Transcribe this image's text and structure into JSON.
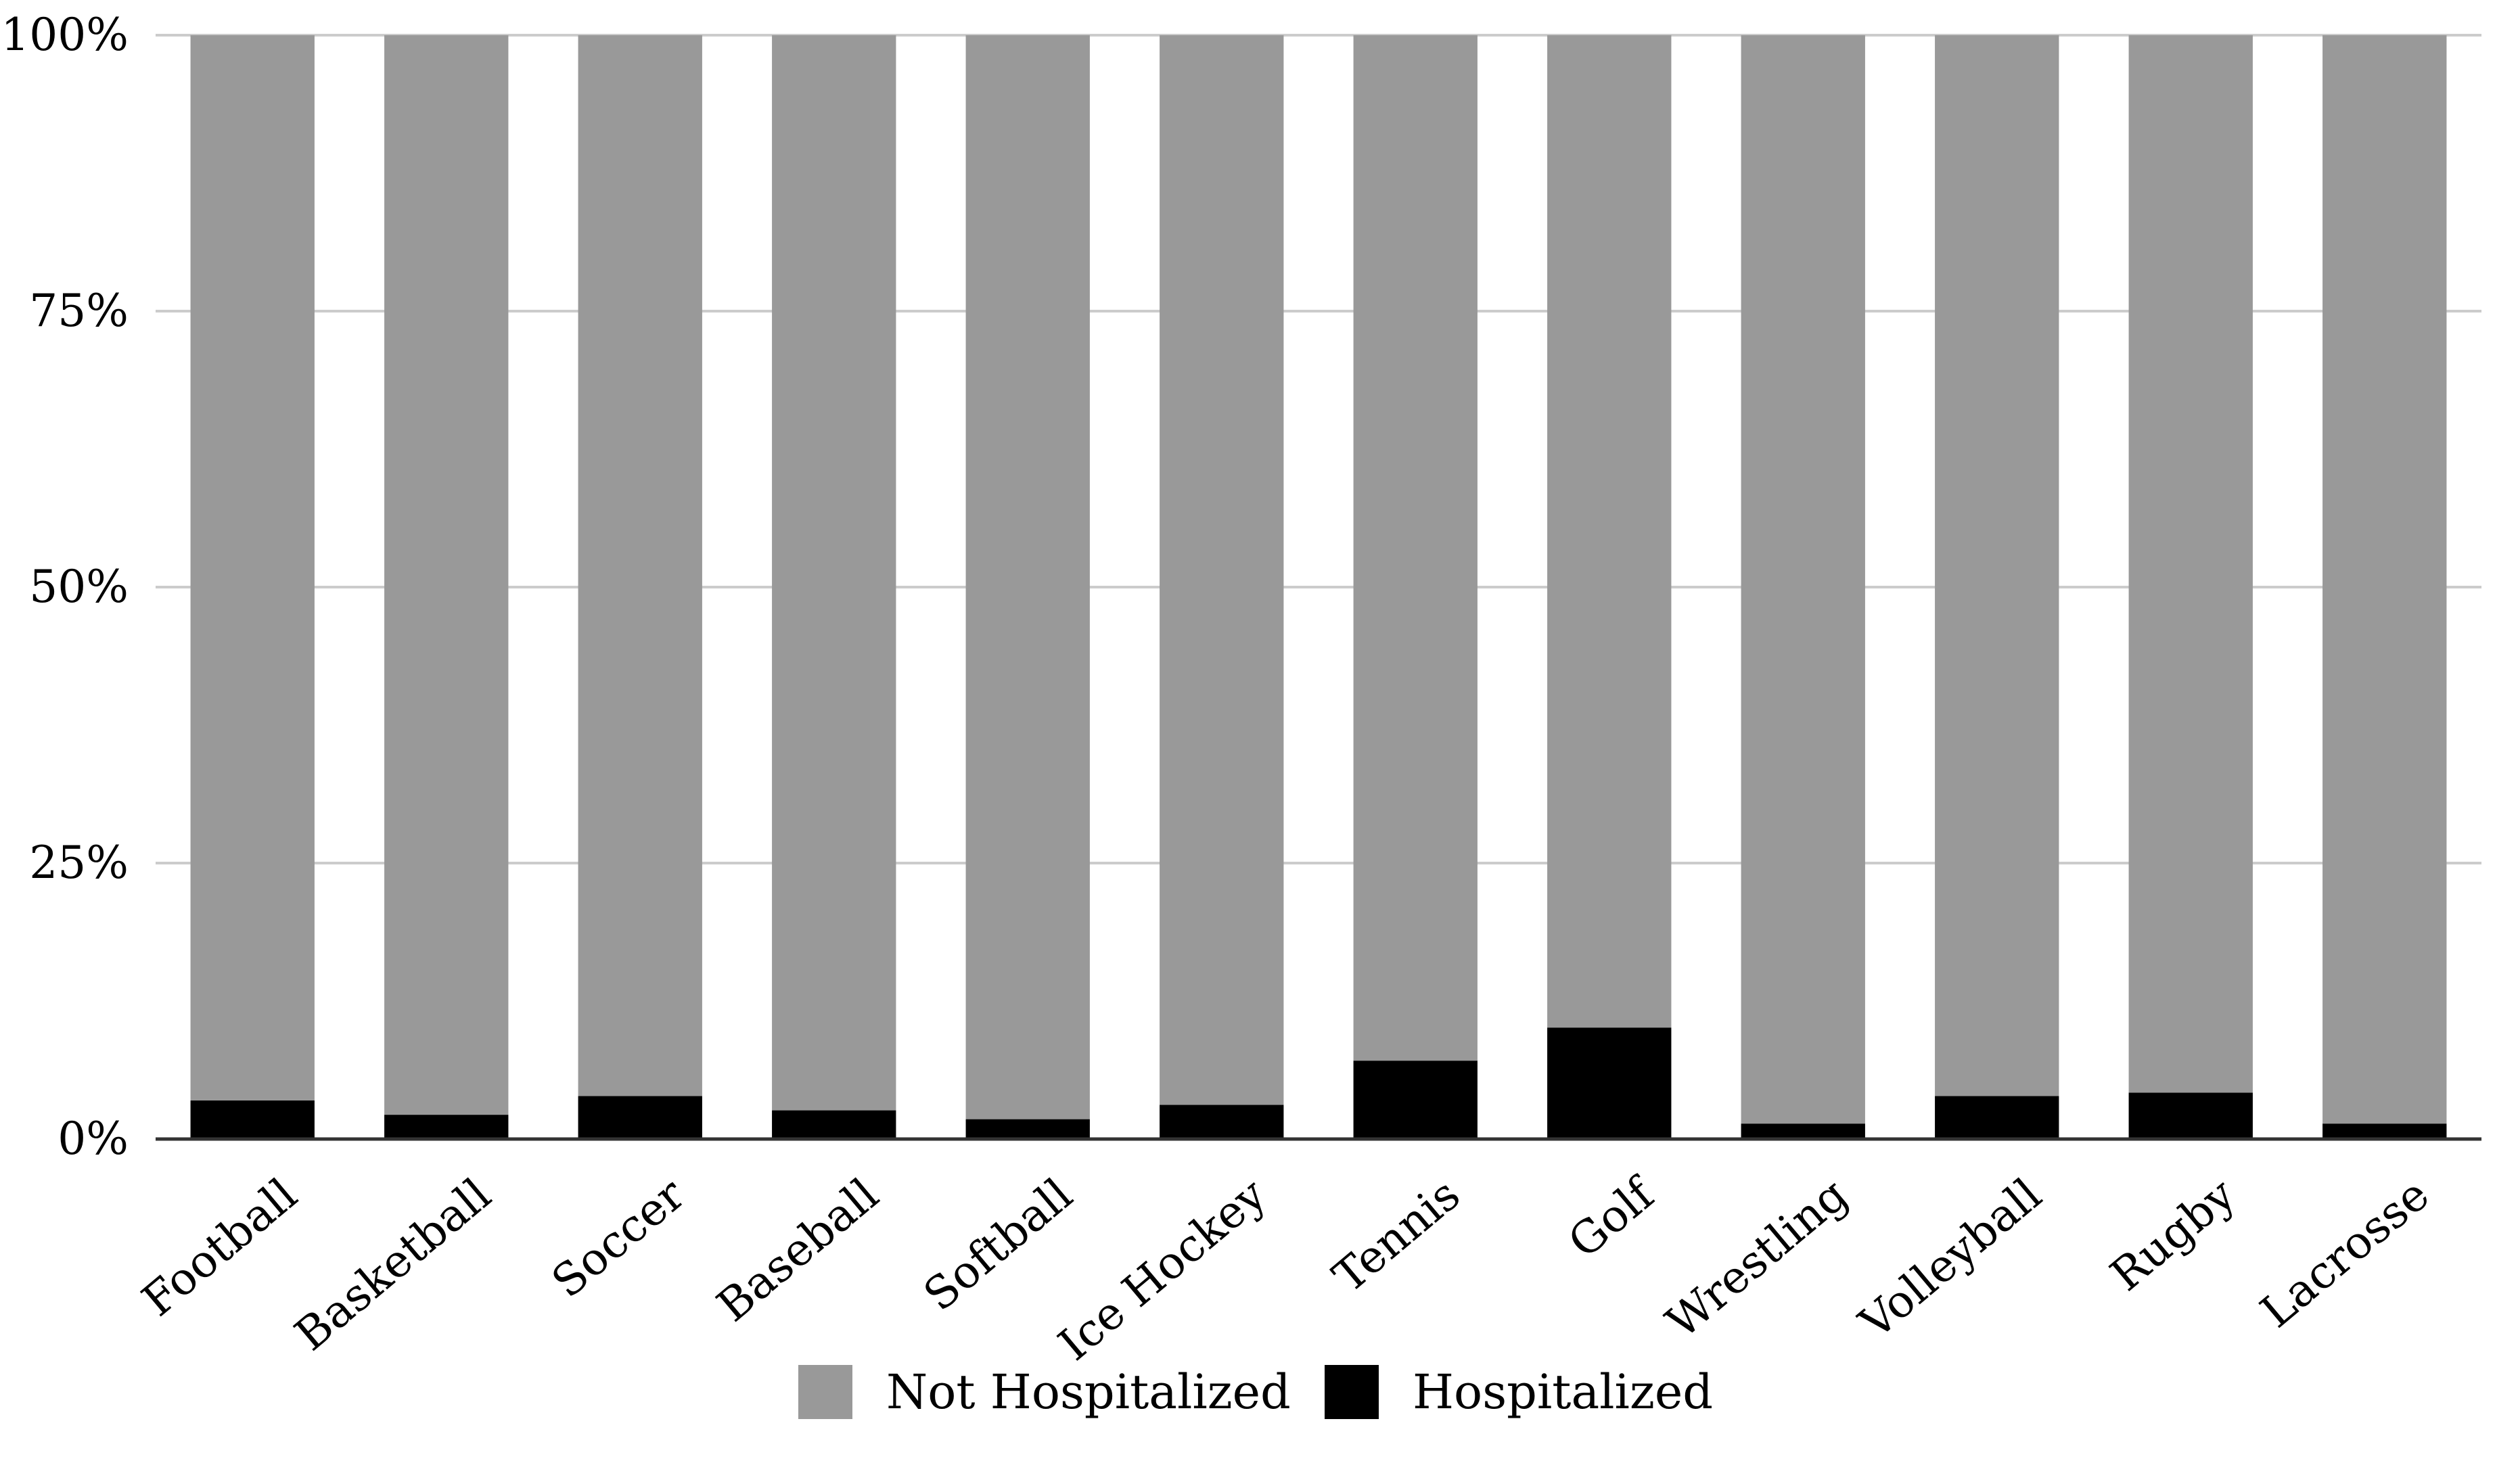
{
  "chart_data": {
    "type": "bar",
    "stacked": true,
    "normalized": true,
    "categories": [
      "Football",
      "Basketball",
      "Soccer",
      "Baseball",
      "Softball",
      "Ice Hockey",
      "Tennis",
      "Golf",
      "Wrestling",
      "Volleyball",
      "Rugby",
      "Lacrosse"
    ],
    "series": [
      {
        "name": "Hospitalized",
        "color": "#000000",
        "values": [
          3.5,
          2.2,
          3.9,
          2.6,
          1.8,
          3.1,
          7.1,
          10.1,
          1.4,
          3.9,
          4.2,
          1.4
        ]
      },
      {
        "name": "Not Hospitalized",
        "color": "#999999",
        "values": [
          96.5,
          97.8,
          96.1,
          97.4,
          98.2,
          96.9,
          92.9,
          89.9,
          98.6,
          96.1,
          95.8,
          98.6
        ]
      }
    ],
    "yticks": [
      "0%",
      "25%",
      "50%",
      "75%",
      "100%"
    ],
    "ylim": [
      0,
      100
    ],
    "title": "",
    "xlabel": "",
    "ylabel": "",
    "grid": true,
    "legend": {
      "position": "bottom",
      "order": [
        "Not Hospitalized",
        "Hospitalized"
      ]
    }
  }
}
